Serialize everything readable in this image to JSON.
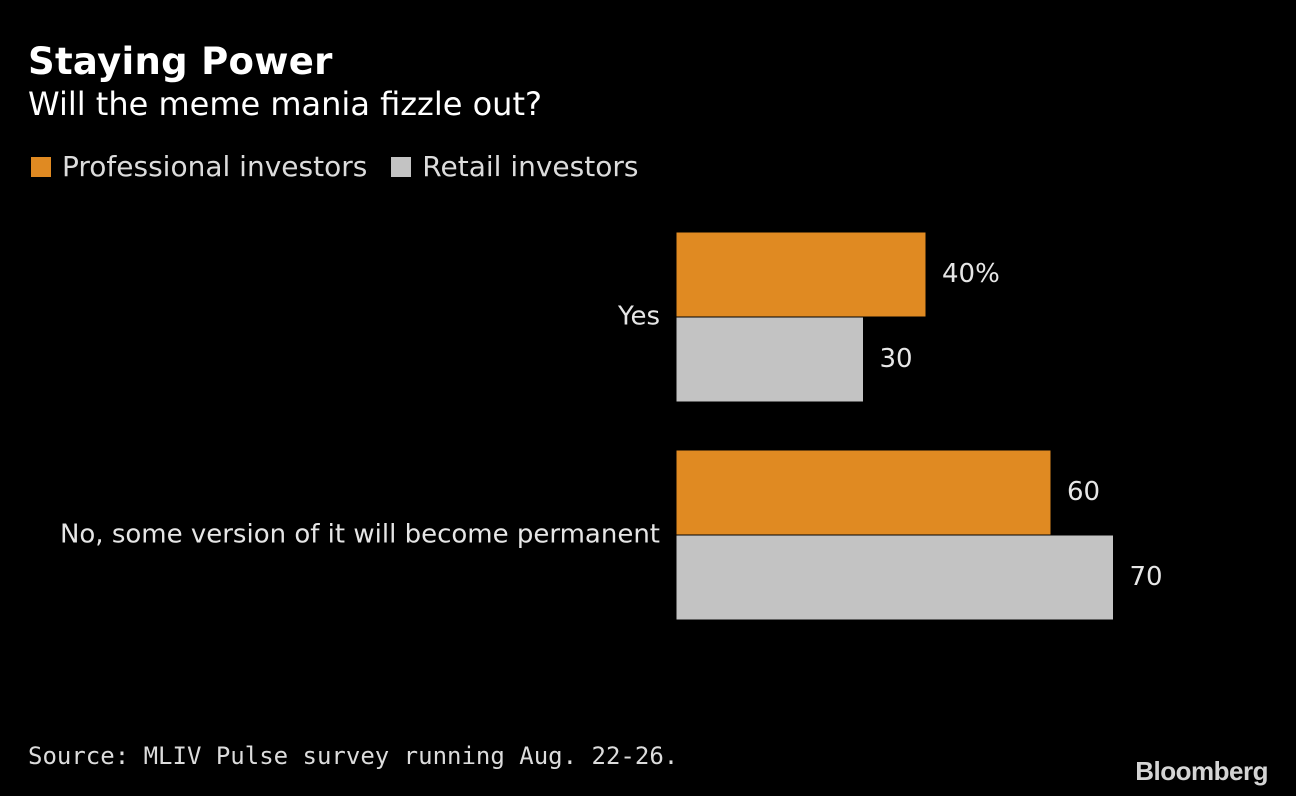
{
  "header": {
    "title": "Staying Power",
    "subtitle": "Will the meme mania fizzle out?"
  },
  "legend": [
    {
      "label": "Professional investors",
      "color": "#e08a22"
    },
    {
      "label": "Retail investors",
      "color": "#c3c3c3"
    }
  ],
  "chart_data": {
    "type": "bar",
    "orientation": "horizontal",
    "title": "Staying Power",
    "subtitle": "Will the meme mania fizzle out?",
    "categories": [
      "Yes",
      "No, some version of it will become permanent"
    ],
    "series": [
      {
        "name": "Professional investors",
        "values": [
          40,
          60
        ],
        "labels": [
          "40%",
          "60"
        ],
        "color": "#e08a22"
      },
      {
        "name": "Retail investors",
        "values": [
          30,
          70
        ],
        "labels": [
          "30",
          "70"
        ],
        "color": "#c3c3c3"
      }
    ],
    "xlim": [
      0,
      100
    ],
    "grid": false,
    "legend_position": "top-left"
  },
  "footer": {
    "source": "Source: MLIV Pulse survey running Aug. 22-26.",
    "logo_text": "Bloomberg"
  }
}
